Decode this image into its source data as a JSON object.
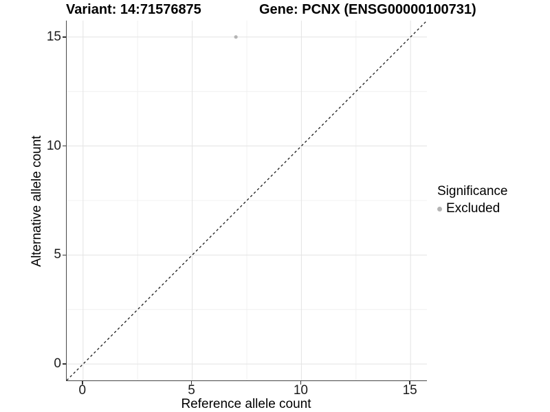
{
  "titles": {
    "variant": "Variant: 14:71576875",
    "gene": "Gene: PCNX (ENSG00000100731)"
  },
  "axes": {
    "x_label": "Reference allele count",
    "y_label": "Alternative allele count",
    "x_tick_labels": [
      "0",
      "5",
      "10",
      "15"
    ],
    "y_tick_labels": [
      "0",
      "5",
      "10",
      "15"
    ]
  },
  "legend": {
    "title": "Significance",
    "items": [
      {
        "label": "Excluded",
        "color": "#b4b4b4"
      }
    ]
  },
  "colors": {
    "background": "#ffffff",
    "major_gridline": "#e3e3e3",
    "minor_gridline": "#f0f0f0",
    "axis_line": "#464646",
    "tick_mark": "#333333",
    "identity_line": "#1a1a1a",
    "excluded_point": "#b4b4b4"
  },
  "chart_data": {
    "type": "scatter",
    "title": "Variant: 14:71576875   Gene: PCNX (ENSG00000100731)",
    "xlabel": "Reference allele count",
    "ylabel": "Alternative allele count",
    "xlim": [
      -0.75,
      15.75
    ],
    "ylim": [
      -0.75,
      15.75
    ],
    "x_major_ticks": [
      0,
      5,
      10,
      15
    ],
    "y_major_ticks": [
      0,
      5,
      10,
      15
    ],
    "x_minor_ticks": [
      2.5,
      7.5,
      12.5
    ],
    "y_minor_ticks": [
      2.5,
      7.5,
      12.5
    ],
    "grid": true,
    "legend_position": "right",
    "reference_line": {
      "kind": "identity",
      "slope": 1,
      "intercept": 0,
      "style": "dashed",
      "color": "#1a1a1a"
    },
    "series": [
      {
        "name": "Excluded",
        "color": "#b4b4b4",
        "point_radius": 2.6,
        "points": [
          {
            "x": 7,
            "y": 15
          }
        ]
      }
    ]
  }
}
